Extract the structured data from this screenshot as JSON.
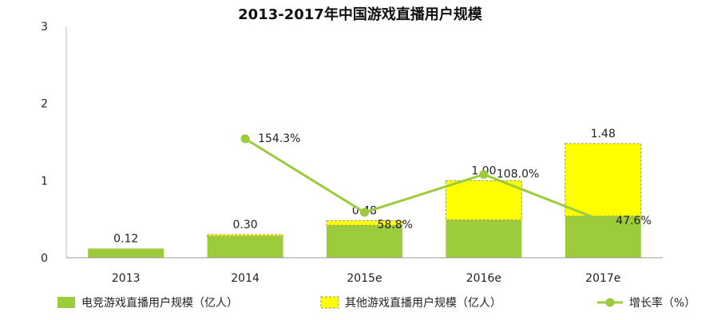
{
  "chart_data": {
    "type": "bar",
    "title": "2013-2017年中国游戏直播用户规模",
    "categories": [
      "2013",
      "2014",
      "2015e",
      "2016e",
      "2017e"
    ],
    "series": [
      {
        "name": "电竞游戏直播用户规模（亿人）",
        "kind": "bar",
        "stack": "users",
        "color": "#9ccc3c",
        "values": [
          0.12,
          0.28,
          0.42,
          0.49,
          0.54
        ]
      },
      {
        "name": "其他游戏直播用户规模（亿人）",
        "kind": "bar",
        "stack": "users",
        "color": "#ffff00",
        "values": [
          0.0,
          0.02,
          0.06,
          0.51,
          0.94
        ]
      },
      {
        "name": "增长率（%）",
        "kind": "line",
        "color": "#9ccc3c",
        "values": [
          null,
          154.3,
          58.8,
          108.0,
          47.6
        ],
        "labels": [
          "",
          "154.3%",
          "58.8%",
          "108.0%",
          "47.6%"
        ]
      }
    ],
    "total_labels": [
      "0.12",
      "0.30",
      "0.48",
      "1.00",
      "1.48"
    ],
    "ylim": [
      0,
      3
    ],
    "yticks": [
      "0",
      "1",
      "2",
      "3"
    ],
    "xlabel": "",
    "ylabel": "",
    "legend_position": "bottom"
  }
}
